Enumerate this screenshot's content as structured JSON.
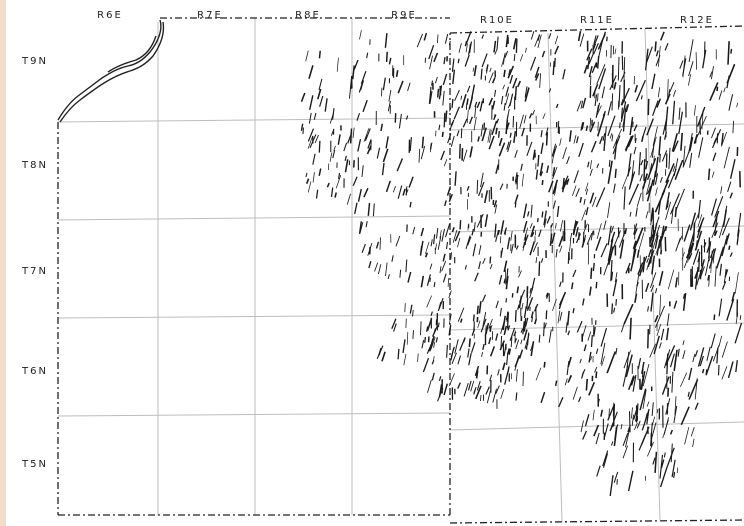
{
  "ranges": [
    "R6E",
    "R7E",
    "R8E",
    "R9E",
    "R10E",
    "R11E",
    "R12E"
  ],
  "townships": [
    "T9N",
    "T8N",
    "T7N",
    "T6N",
    "T5N"
  ],
  "colors": {
    "grid_lines": "#bdbdbd",
    "boundary": "#222222",
    "hachures": "#1a1a1a",
    "page_strip": "#f1ddc9"
  }
}
